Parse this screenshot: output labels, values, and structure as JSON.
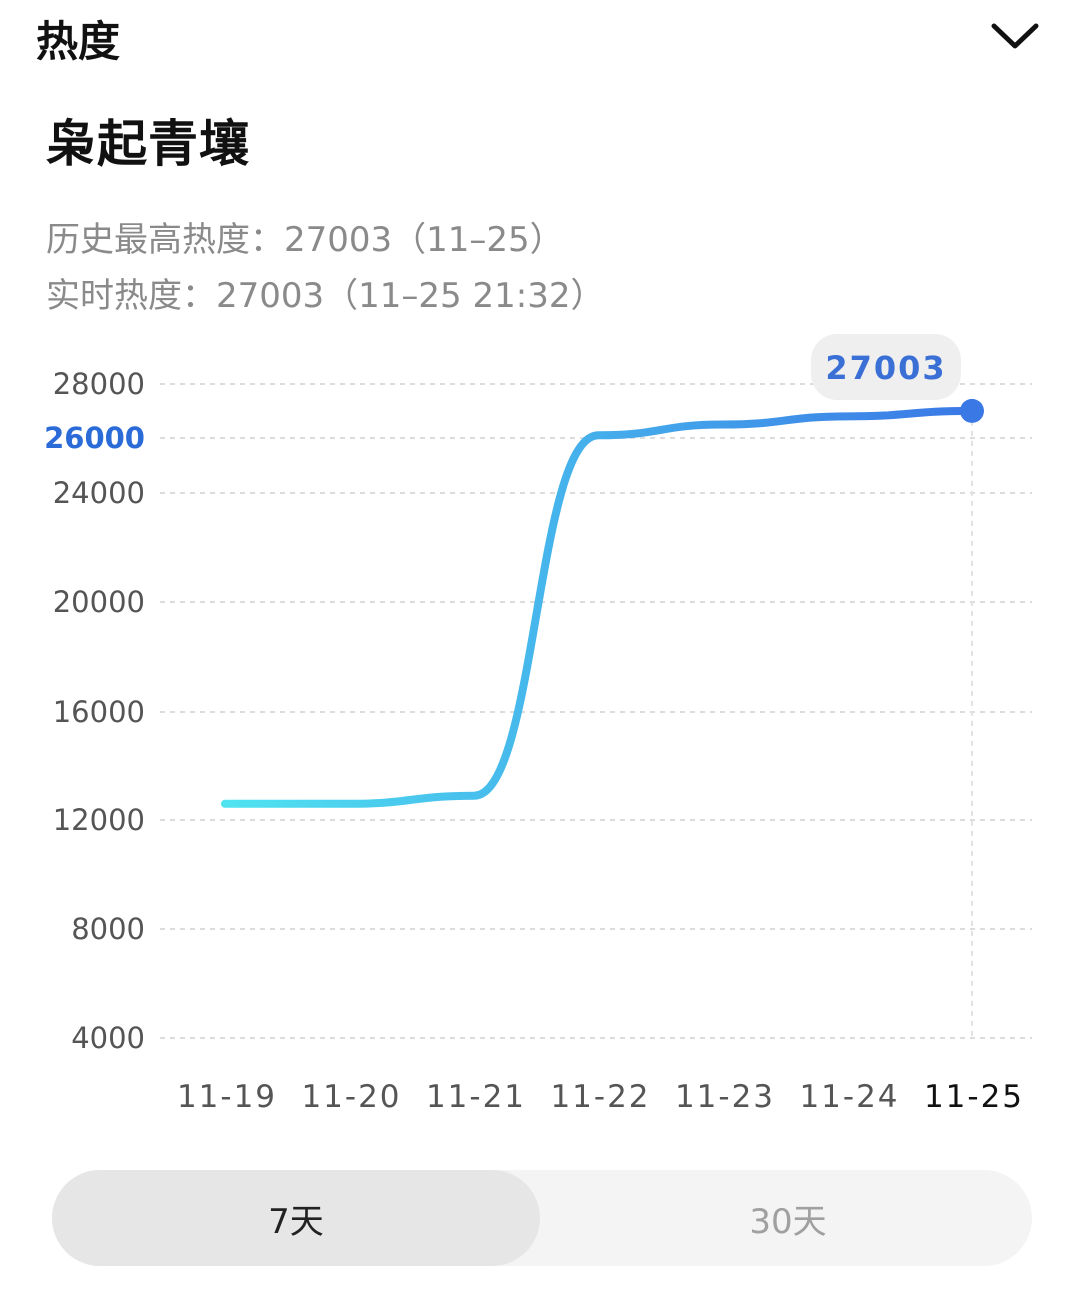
{
  "header": {
    "title": "热度",
    "toggle_icon": "chevron-down-icon"
  },
  "topic": {
    "title": "枭起青壤"
  },
  "info": {
    "history_max": "历史最高热度：27003（11–25）",
    "realtime": "实时热度：27003（11–25 21:32）"
  },
  "chart_data": {
    "type": "line",
    "x": [
      "11-19",
      "11-20",
      "11-21",
      "11-22",
      "11-23",
      "11-24",
      "11-25"
    ],
    "series": [
      {
        "values": [
          12600,
          12600,
          12900,
          26100,
          26500,
          26800,
          27003
        ]
      }
    ],
    "y_ticks": [
      28000,
      26000,
      24000,
      20000,
      16000,
      12000,
      8000,
      4000
    ],
    "highlighted_y_tick": 26000,
    "active_x": "11-25",
    "tooltip": "27003",
    "grid": true,
    "colors": {
      "line_start": "#4fe3f0",
      "line_end": "#3a78e6",
      "point": "#3a78e6",
      "highlight": "#2a6bd8"
    }
  },
  "tabs": [
    {
      "label": "7天",
      "active": true
    },
    {
      "label": "30天",
      "active": false
    }
  ]
}
